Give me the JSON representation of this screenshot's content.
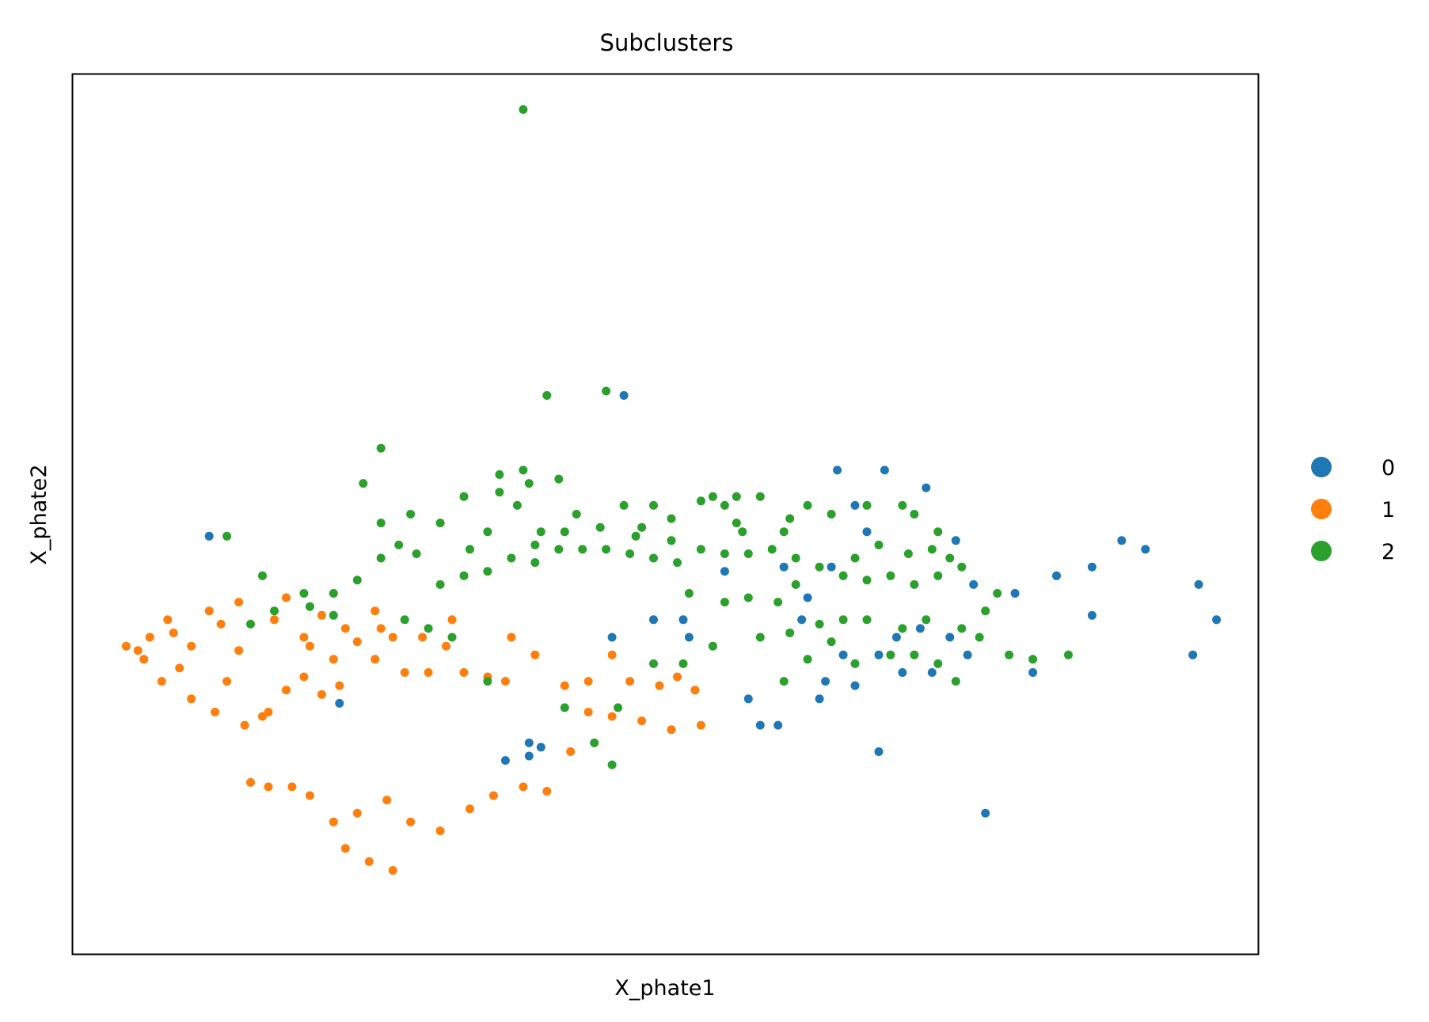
{
  "chart_data": {
    "type": "scatter",
    "title": "Subclusters",
    "xlabel": "X_phate1",
    "ylabel": "X_phate2",
    "xlim": [
      0,
      100
    ],
    "ylim": [
      0,
      100
    ],
    "ticks_shown": false,
    "grid": false,
    "legend": {
      "placement": "right",
      "entries": [
        "0",
        "1",
        "2"
      ]
    },
    "series": [
      {
        "name": "0",
        "color": "#1f77b4",
        "points": [
          [
            11.5,
            47.5
          ],
          [
            46.5,
            63.5
          ],
          [
            38.5,
            22.5
          ],
          [
            39.5,
            23.5
          ],
          [
            45.5,
            36
          ],
          [
            38.5,
            24
          ],
          [
            22.5,
            28.5
          ],
          [
            36.5,
            22
          ],
          [
            77,
            16
          ],
          [
            68,
            23
          ],
          [
            63,
            29
          ],
          [
            57,
            29
          ],
          [
            52,
            36
          ],
          [
            51.5,
            38
          ],
          [
            49,
            38
          ],
          [
            58,
            26
          ],
          [
            59.5,
            26
          ],
          [
            55,
            43.5
          ],
          [
            69.5,
            36
          ],
          [
            61.5,
            38
          ],
          [
            62,
            40.5
          ],
          [
            60,
            44
          ],
          [
            64,
            44
          ],
          [
            67,
            48
          ],
          [
            66,
            51
          ],
          [
            64.5,
            55
          ],
          [
            68.5,
            55
          ],
          [
            72,
            53
          ],
          [
            74.5,
            47
          ],
          [
            76,
            42
          ],
          [
            79.5,
            41
          ],
          [
            83,
            43
          ],
          [
            86,
            44
          ],
          [
            90.5,
            46
          ],
          [
            95,
            42
          ],
          [
            94.5,
            34
          ],
          [
            96.5,
            38
          ],
          [
            88.5,
            47
          ],
          [
            86,
            38.5
          ],
          [
            81,
            32
          ],
          [
            75.5,
            34
          ],
          [
            71.5,
            37
          ],
          [
            68,
            34
          ],
          [
            65,
            34
          ],
          [
            63.5,
            31
          ],
          [
            66,
            30.5
          ],
          [
            70,
            32
          ],
          [
            72.5,
            32
          ],
          [
            74,
            36
          ]
        ]
      },
      {
        "name": "1",
        "color": "#ff7f0e",
        "points": [
          [
            4.5,
            35
          ],
          [
            6,
            33.5
          ],
          [
            9,
            32.5
          ],
          [
            12,
            27.5
          ],
          [
            14.5,
            26
          ],
          [
            16.5,
            27.5
          ],
          [
            18,
            30
          ],
          [
            19.5,
            31.5
          ],
          [
            21,
            29.5
          ],
          [
            22.5,
            30.5
          ],
          [
            24,
            35.5
          ],
          [
            25.5,
            33.5
          ],
          [
            26,
            37
          ],
          [
            28,
            32
          ],
          [
            30,
            32
          ],
          [
            33,
            32
          ],
          [
            35,
            31.5
          ],
          [
            36.5,
            31
          ],
          [
            39,
            34
          ],
          [
            41.5,
            30.5
          ],
          [
            43.5,
            31
          ],
          [
            45.5,
            34
          ],
          [
            47,
            31
          ],
          [
            49.5,
            30.5
          ],
          [
            51,
            31.5
          ],
          [
            52.5,
            30
          ],
          [
            53,
            26
          ],
          [
            50.5,
            25.5
          ],
          [
            48,
            26.5
          ],
          [
            45.5,
            27
          ],
          [
            43.5,
            27.5
          ],
          [
            42,
            23
          ],
          [
            40,
            18.5
          ],
          [
            38,
            19
          ],
          [
            35.5,
            18
          ],
          [
            33.5,
            16.5
          ],
          [
            31,
            14
          ],
          [
            28.5,
            15
          ],
          [
            26.5,
            17.5
          ],
          [
            24,
            16
          ],
          [
            23,
            12
          ],
          [
            25,
            10.5
          ],
          [
            27,
            9.5
          ],
          [
            22,
            15
          ],
          [
            20,
            18
          ],
          [
            18.5,
            19
          ],
          [
            16.5,
            19
          ],
          [
            15,
            19.5
          ],
          [
            16,
            27
          ],
          [
            13,
            31
          ],
          [
            10,
            29
          ],
          [
            7.5,
            31
          ],
          [
            5.5,
            34.5
          ],
          [
            8,
            38
          ],
          [
            11.5,
            39
          ],
          [
            14,
            40
          ],
          [
            18,
            40.5
          ],
          [
            21,
            38.5
          ],
          [
            23,
            37
          ],
          [
            25.5,
            39
          ],
          [
            19.5,
            36
          ],
          [
            14,
            34.5
          ],
          [
            10,
            35
          ],
          [
            6.5,
            36
          ],
          [
            8.5,
            36.5
          ],
          [
            12.5,
            37.5
          ],
          [
            17,
            38
          ],
          [
            20,
            35
          ],
          [
            22,
            33.5
          ],
          [
            27,
            36
          ],
          [
            31.5,
            35
          ],
          [
            37,
            36
          ],
          [
            32,
            38
          ],
          [
            29.5,
            36
          ]
        ]
      },
      {
        "name": "2",
        "color": "#2ca02c",
        "points": [
          [
            38,
            96
          ],
          [
            40,
            63.5
          ],
          [
            26,
            57.5
          ],
          [
            24.5,
            53.5
          ],
          [
            45,
            64
          ],
          [
            13,
            47.5
          ],
          [
            16,
            43
          ],
          [
            17,
            39
          ],
          [
            19.5,
            41
          ],
          [
            22,
            41
          ],
          [
            24,
            42.5
          ],
          [
            26,
            45
          ],
          [
            27.5,
            46.5
          ],
          [
            29,
            45.5
          ],
          [
            31,
            42
          ],
          [
            33,
            43
          ],
          [
            35,
            43.5
          ],
          [
            37,
            45
          ],
          [
            39,
            44.5
          ],
          [
            41,
            46
          ],
          [
            43,
            46
          ],
          [
            45,
            46
          ],
          [
            47,
            45.5
          ],
          [
            49,
            45
          ],
          [
            51,
            44.5
          ],
          [
            53,
            46
          ],
          [
            55,
            45.5
          ],
          [
            57,
            45.5
          ],
          [
            59,
            46
          ],
          [
            61,
            45
          ],
          [
            63,
            44
          ],
          [
            65,
            43
          ],
          [
            67,
            42.5
          ],
          [
            69,
            43
          ],
          [
            71,
            42
          ],
          [
            73,
            43
          ],
          [
            75,
            44
          ],
          [
            64,
            50
          ],
          [
            60,
            48
          ],
          [
            62,
            51
          ],
          [
            67,
            51
          ],
          [
            70,
            51
          ],
          [
            71,
            50
          ],
          [
            58,
            52
          ],
          [
            55,
            51
          ],
          [
            53,
            51.5
          ],
          [
            56,
            52
          ],
          [
            49,
            51
          ],
          [
            46.5,
            51
          ],
          [
            41,
            54
          ],
          [
            38,
            55
          ],
          [
            36,
            54.5
          ],
          [
            33,
            52
          ],
          [
            31,
            49
          ],
          [
            28.5,
            50
          ],
          [
            26,
            49
          ],
          [
            37.5,
            51
          ],
          [
            42.5,
            50
          ],
          [
            44.5,
            48.5
          ],
          [
            47.5,
            47.5
          ],
          [
            50.5,
            47
          ],
          [
            52,
            41
          ],
          [
            55,
            40
          ],
          [
            57,
            40.5
          ],
          [
            59.5,
            40
          ],
          [
            61,
            42
          ],
          [
            63,
            37.5
          ],
          [
            66,
            33
          ],
          [
            69,
            34
          ],
          [
            71,
            34
          ],
          [
            73,
            33
          ],
          [
            74.5,
            31
          ],
          [
            75,
            37
          ],
          [
            76.5,
            36
          ],
          [
            79,
            34
          ],
          [
            81,
            33.5
          ],
          [
            84,
            34
          ],
          [
            60.5,
            36.5
          ],
          [
            58,
            36
          ],
          [
            54,
            35
          ],
          [
            51.5,
            33
          ],
          [
            49,
            33
          ],
          [
            46,
            28
          ],
          [
            44,
            24
          ],
          [
            45.5,
            21.5
          ],
          [
            41.5,
            28
          ],
          [
            35,
            31
          ],
          [
            32,
            36
          ],
          [
            30,
            37
          ],
          [
            28,
            38
          ],
          [
            39,
            46.5
          ],
          [
            48,
            48.5
          ],
          [
            54,
            52
          ],
          [
            56.5,
            48
          ],
          [
            60.5,
            49.5
          ],
          [
            56,
            49
          ],
          [
            50.5,
            49.5
          ],
          [
            36,
            52.5
          ],
          [
            38.5,
            53.5
          ],
          [
            39.5,
            48
          ],
          [
            41.5,
            48
          ],
          [
            35,
            48
          ],
          [
            33.5,
            46
          ],
          [
            22,
            38.5
          ],
          [
            20,
            39.5
          ],
          [
            15,
            37.5
          ],
          [
            68,
            46.5
          ],
          [
            66,
            45
          ],
          [
            70.5,
            45.5
          ],
          [
            72.5,
            46
          ],
          [
            74,
            45
          ],
          [
            67,
            38
          ],
          [
            65,
            38
          ],
          [
            60,
            31
          ],
          [
            62,
            33.5
          ],
          [
            64,
            35.5
          ],
          [
            70,
            37
          ],
          [
            72,
            38
          ],
          [
            77,
            39
          ],
          [
            78,
            41
          ],
          [
            73,
            48
          ]
        ]
      }
    ]
  }
}
